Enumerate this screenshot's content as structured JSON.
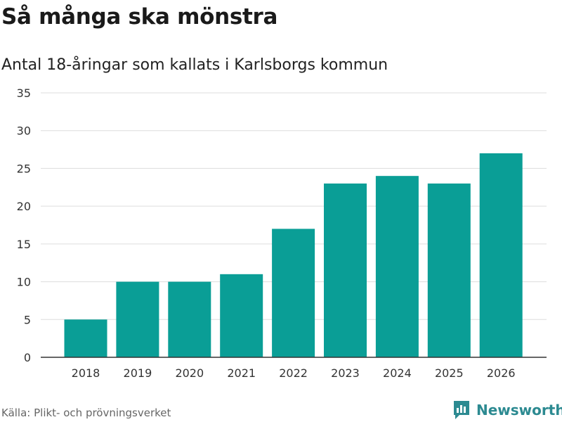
{
  "header": {
    "title": "Så många ska mönstra",
    "subtitle": "Antal 18-åringar som kallats i Karlsborgs kommun"
  },
  "footer": {
    "source": "Källa: Plikt- och prövningsverket",
    "brand": "Newsworthy",
    "brand_icon": "newsworthy-logo-icon"
  },
  "colors": {
    "bar": "#0a9e96",
    "grid": "#dddddd",
    "axis": "#333333",
    "brand": "#2c8a91"
  },
  "chart_data": {
    "type": "bar",
    "title": "Så många ska mönstra",
    "subtitle": "Antal 18-åringar som kallats i Karlsborgs kommun",
    "xlabel": "",
    "ylabel": "",
    "categories": [
      "2018",
      "2019",
      "2020",
      "2021",
      "2022",
      "2023",
      "2024",
      "2025",
      "2026"
    ],
    "values": [
      5,
      10,
      10,
      11,
      17,
      23,
      24,
      23,
      27
    ],
    "ylim": [
      0,
      35
    ],
    "yticks": [
      0,
      5,
      10,
      15,
      20,
      25,
      30,
      35
    ],
    "grid": true,
    "legend": "none"
  }
}
